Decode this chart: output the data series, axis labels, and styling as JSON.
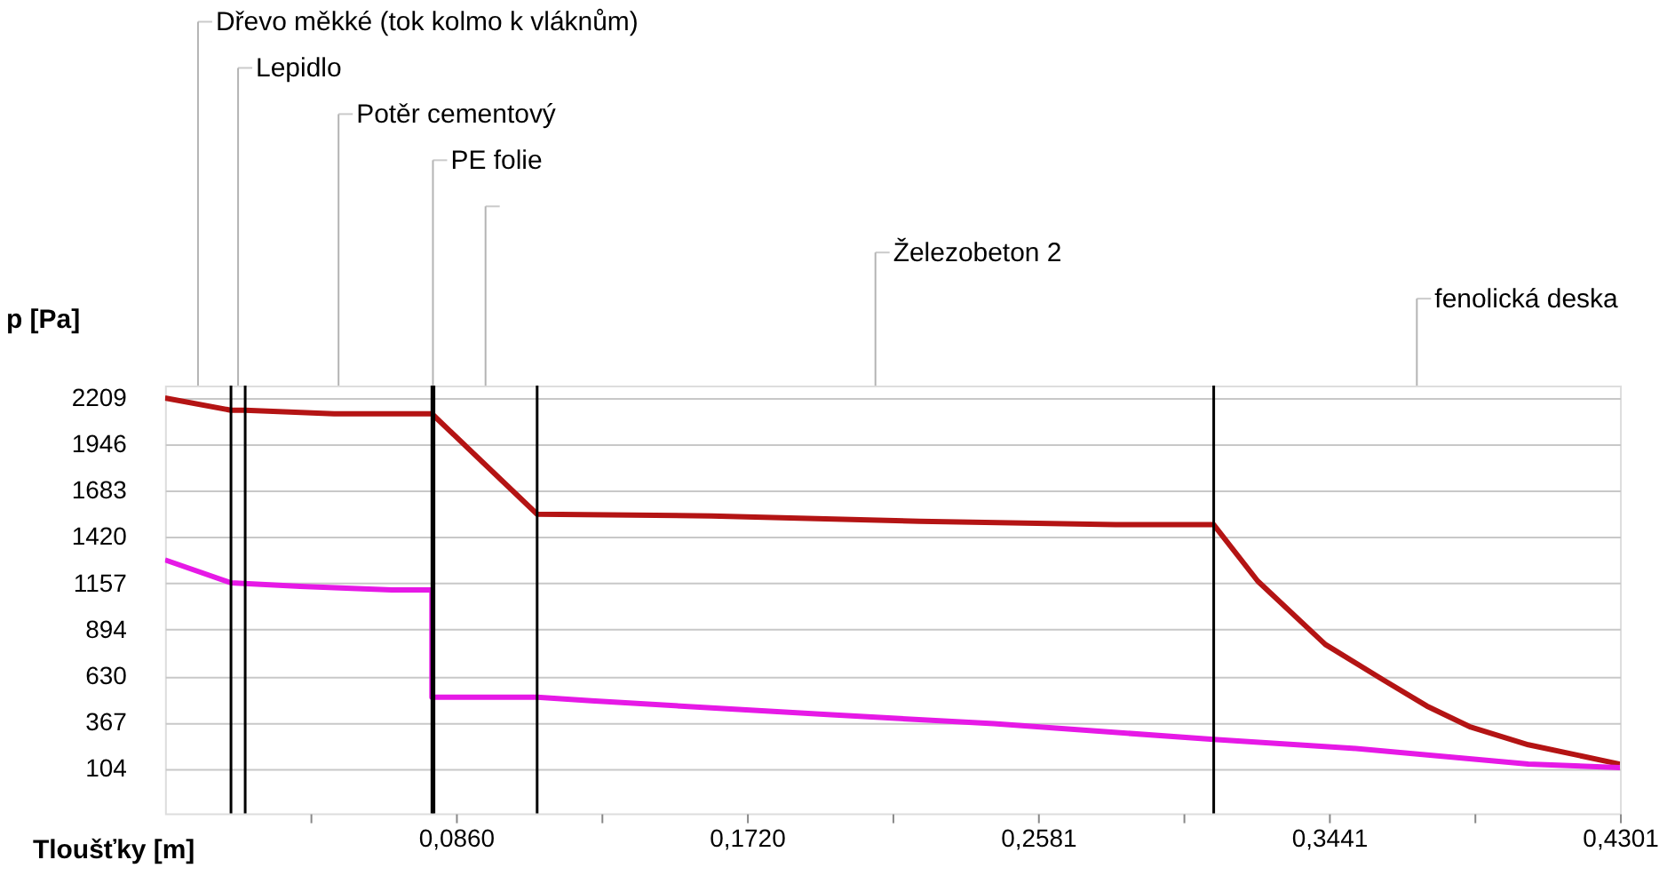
{
  "chart_data": {
    "type": "line",
    "ylabel": "p [Pa]",
    "xlabel": "Tloušťky [m]",
    "xlim": [
      0,
      0.4301
    ],
    "ylim": [
      -150,
      2280
    ],
    "xticks": [
      {
        "value": 0.043,
        "label": null
      },
      {
        "value": 0.086,
        "label": "0,0860"
      },
      {
        "value": 0.129,
        "label": null
      },
      {
        "value": 0.172,
        "label": "0,1720"
      },
      {
        "value": 0.215,
        "label": null
      },
      {
        "value": 0.2581,
        "label": "0,2581"
      },
      {
        "value": 0.301,
        "label": null
      },
      {
        "value": 0.3441,
        "label": "0,3441"
      },
      {
        "value": 0.387,
        "label": null
      },
      {
        "value": 0.4301,
        "label": "0,4301"
      }
    ],
    "yticks": [
      104,
      367,
      630,
      894,
      1157,
      1420,
      1683,
      1946,
      2209
    ],
    "grid": "y",
    "line_style": "solid",
    "series": [
      {
        "color": "#b41414",
        "x": [
          0,
          0.0195,
          0.0237,
          0.05,
          0.0789,
          0.11,
          0.1615,
          0.223,
          0.281,
          0.31,
          0.323,
          0.343,
          0.36,
          0.373,
          0.386,
          0.403,
          0.4301
        ],
        "values": [
          2210,
          2140,
          2140,
          2120,
          2120,
          1550,
          1540,
          1510,
          1490,
          1490,
          1170,
          810,
          610,
          460,
          340,
          240,
          130
        ]
      },
      {
        "color": "#e619e6",
        "x": [
          0,
          0.0195,
          0.04,
          0.067,
          0.0789,
          0.0789,
          0.11,
          0.126,
          0.1615,
          0.197,
          0.245,
          0.31,
          0.351,
          0.403,
          0.4301
        ],
        "values": [
          1290,
          1160,
          1140,
          1120,
          1120,
          510,
          510,
          490,
          450,
          410,
          360,
          270,
          220,
          130,
          110
        ]
      }
    ],
    "ref_lines": [
      {
        "axis": "x",
        "value": 0.0195,
        "color": "#000000"
      },
      {
        "axis": "x",
        "value": 0.0237,
        "color": "#000000"
      },
      {
        "axis": "x",
        "value": 0.0789,
        "color": "#000000"
      },
      {
        "axis": "x",
        "value": 0.0795,
        "color": "#000000"
      },
      {
        "axis": "x",
        "value": 0.11,
        "color": "#000000"
      },
      {
        "axis": "x",
        "value": 0.31,
        "color": "#000000"
      }
    ],
    "annotations": [
      "Dřevo měkké (tok kolmo k vláknům)",
      "Lepidlo",
      "Potěr cementový",
      "PE folie",
      null,
      "Železobeton 2",
      "fenolická deska"
    ]
  }
}
